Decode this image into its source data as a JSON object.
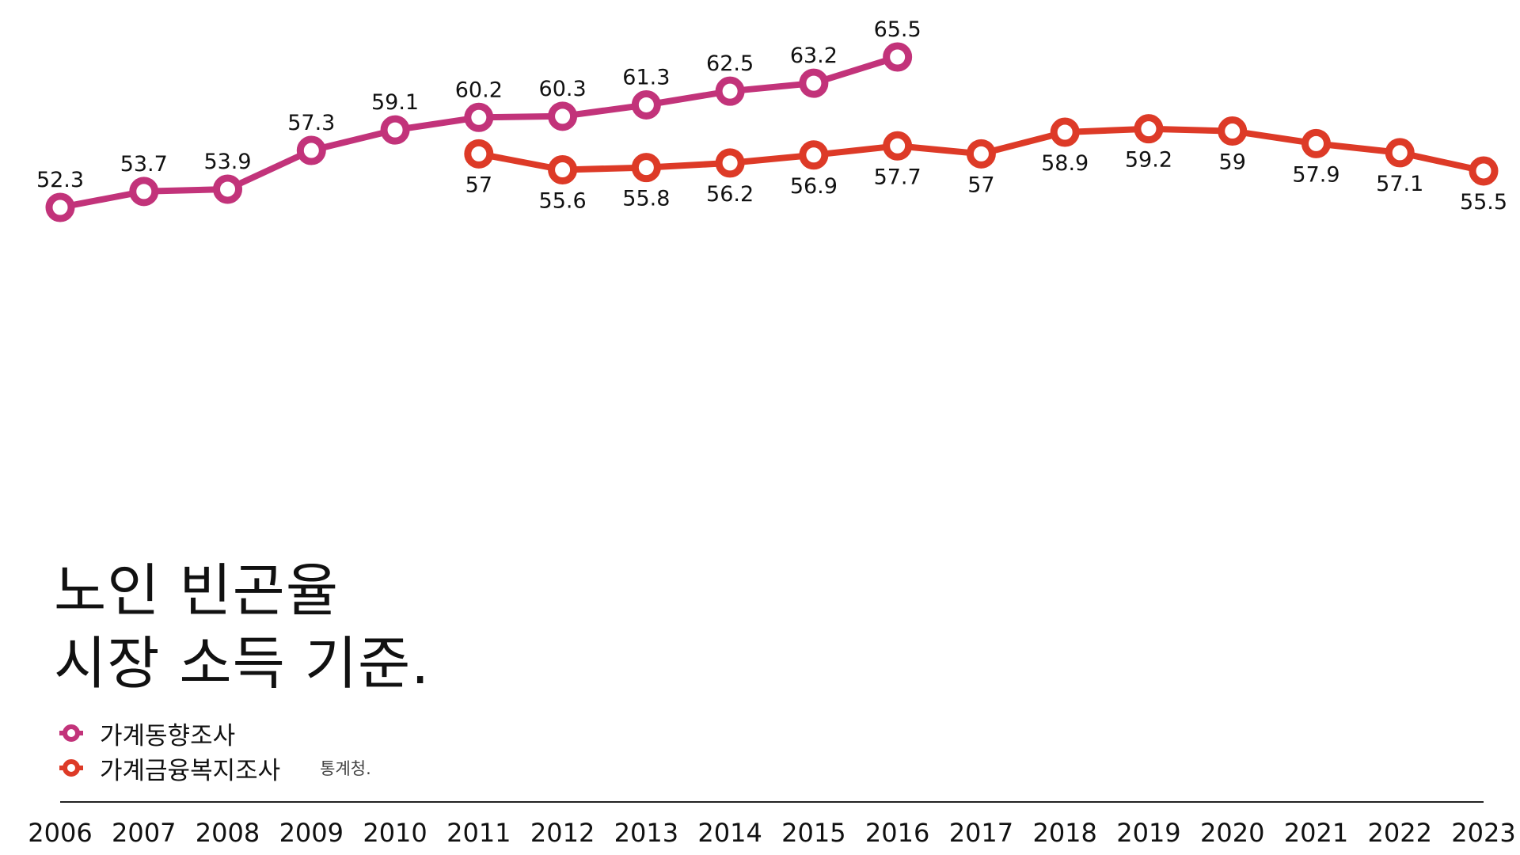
{
  "title": {
    "line1": "노인 빈곤율",
    "line2": "시장 소득 기준."
  },
  "source": "통계청.",
  "colors": {
    "series1": "#C2337A",
    "series2": "#DD3A27",
    "axis": "#222222",
    "text": "#111111"
  },
  "chart_data": {
    "type": "line",
    "title": "노인 빈곤율 시장 소득 기준.",
    "xlabel": "",
    "ylabel": "",
    "x": [
      "2006",
      "2007",
      "2008",
      "2009",
      "2010",
      "2011",
      "2012",
      "2013",
      "2014",
      "2015",
      "2016",
      "2017",
      "2018",
      "2019",
      "2020",
      "2021",
      "2022",
      "2023"
    ],
    "ylim": [
      52.3,
      65.5
    ],
    "grid": false,
    "legend_position": "bottom-left",
    "series": [
      {
        "name": "가계동향조사",
        "color": "#C2337A",
        "points": [
          {
            "x": "2006",
            "y": 52.3
          },
          {
            "x": "2007",
            "y": 53.7
          },
          {
            "x": "2008",
            "y": 53.9
          },
          {
            "x": "2009",
            "y": 57.3
          },
          {
            "x": "2010",
            "y": 59.1
          },
          {
            "x": "2011",
            "y": 60.2
          },
          {
            "x": "2012",
            "y": 60.3
          },
          {
            "x": "2013",
            "y": 61.3
          },
          {
            "x": "2014",
            "y": 62.5
          },
          {
            "x": "2015",
            "y": 63.2
          },
          {
            "x": "2016",
            "y": 65.5
          }
        ]
      },
      {
        "name": "가계금융복지조사",
        "color": "#DD3A27",
        "points": [
          {
            "x": "2011",
            "y": 57
          },
          {
            "x": "2012",
            "y": 55.6
          },
          {
            "x": "2013",
            "y": 55.8
          },
          {
            "x": "2014",
            "y": 56.2
          },
          {
            "x": "2015",
            "y": 56.9
          },
          {
            "x": "2016",
            "y": 57.7
          },
          {
            "x": "2017",
            "y": 57
          },
          {
            "x": "2018",
            "y": 58.9
          },
          {
            "x": "2019",
            "y": 59.2
          },
          {
            "x": "2020",
            "y": 59
          },
          {
            "x": "2021",
            "y": 57.9
          },
          {
            "x": "2022",
            "y": 57.1
          },
          {
            "x": "2023",
            "y": 55.5
          }
        ]
      }
    ]
  }
}
